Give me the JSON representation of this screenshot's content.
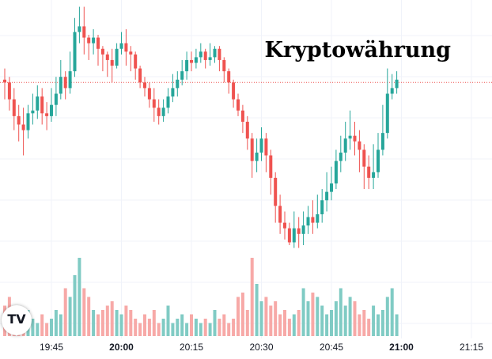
{
  "title": "Kryptowährung",
  "logo_text": "TV",
  "colors": {
    "up": "#26a69a",
    "down": "#ef5350",
    "vol_up": "#80cbc4",
    "vol_down": "#f7a9a7",
    "grid": "#f0f3fa",
    "price_line": "#ef5350"
  },
  "chart_data": {
    "type": "candlestick",
    "title": "Kryptowährung",
    "x_tick_labels": [
      {
        "label": "19:45",
        "bar": 10,
        "bold": false
      },
      {
        "label": "20:00",
        "bar": 25,
        "bold": true
      },
      {
        "label": "20:15",
        "bar": 40,
        "bold": false
      },
      {
        "label": "20:30",
        "bar": 55,
        "bold": false
      },
      {
        "label": "20:45",
        "bar": 70,
        "bold": false
      },
      {
        "label": "21:00",
        "bar": 85,
        "bold": true
      },
      {
        "label": "21:15",
        "bar": 100,
        "bold": false
      }
    ],
    "y_range": [
      -2.9,
      1.4
    ],
    "volume_range": [
      0,
      1
    ],
    "last_price": 0.0,
    "grid": true,
    "candles": [
      [
        0.05,
        0.0,
        0.25,
        -0.3
      ],
      [
        0.0,
        -0.3,
        0.1,
        -0.5
      ],
      [
        -0.3,
        -0.6,
        -0.1,
        -0.85
      ],
      [
        -0.6,
        -0.75,
        -0.4,
        -1.05
      ],
      [
        -0.75,
        -0.85,
        -0.45,
        -1.3
      ],
      [
        -0.85,
        -0.55,
        -0.4,
        -1.0
      ],
      [
        -0.55,
        -0.5,
        -0.2,
        -0.75
      ],
      [
        -0.5,
        -0.25,
        -0.05,
        -0.65
      ],
      [
        -0.25,
        -0.55,
        -0.1,
        -0.75
      ],
      [
        -0.55,
        -0.6,
        -0.35,
        -0.85
      ],
      [
        -0.6,
        -0.4,
        -0.1,
        -0.7
      ],
      [
        -0.4,
        -0.2,
        0.1,
        -0.6
      ],
      [
        -0.2,
        0.1,
        0.4,
        -0.3
      ],
      [
        0.1,
        -0.1,
        0.2,
        -0.3
      ],
      [
        -0.1,
        0.2,
        0.55,
        -0.2
      ],
      [
        0.2,
        0.9,
        1.15,
        0.1
      ],
      [
        0.9,
        1.0,
        1.35,
        0.7
      ],
      [
        1.0,
        0.8,
        1.35,
        0.5
      ],
      [
        0.8,
        0.7,
        0.85,
        0.4
      ],
      [
        0.7,
        0.8,
        0.95,
        0.5
      ],
      [
        0.8,
        0.6,
        0.85,
        0.3
      ],
      [
        0.6,
        0.5,
        0.65,
        0.2
      ],
      [
        0.5,
        0.4,
        0.55,
        0.1
      ],
      [
        0.4,
        0.3,
        0.6,
        0.0
      ],
      [
        0.3,
        0.6,
        0.7,
        0.25
      ],
      [
        0.6,
        0.7,
        0.9,
        0.5
      ],
      [
        0.7,
        0.55,
        0.95,
        0.3
      ],
      [
        0.55,
        0.5,
        0.65,
        0.2
      ],
      [
        0.5,
        0.25,
        0.55,
        0.05
      ],
      [
        0.25,
        0.0,
        0.3,
        -0.1
      ],
      [
        0.0,
        -0.1,
        0.1,
        -0.25
      ],
      [
        -0.1,
        -0.3,
        0.0,
        -0.45
      ],
      [
        -0.3,
        -0.45,
        -0.1,
        -0.7
      ],
      [
        -0.45,
        -0.6,
        -0.3,
        -0.75
      ],
      [
        -0.6,
        -0.45,
        -0.3,
        -0.7
      ],
      [
        -0.45,
        -0.25,
        -0.1,
        -0.55
      ],
      [
        -0.25,
        -0.1,
        0.15,
        -0.35
      ],
      [
        -0.1,
        0.05,
        0.2,
        -0.25
      ],
      [
        0.05,
        0.2,
        0.4,
        -0.05
      ],
      [
        0.2,
        0.4,
        0.55,
        0.05
      ],
      [
        0.4,
        0.35,
        0.55,
        0.2
      ],
      [
        0.35,
        0.45,
        0.6,
        0.25
      ],
      [
        0.45,
        0.55,
        0.7,
        0.35
      ],
      [
        0.55,
        0.4,
        0.6,
        0.25
      ],
      [
        0.4,
        0.45,
        0.7,
        0.3
      ],
      [
        0.45,
        0.6,
        0.65,
        0.35
      ],
      [
        0.6,
        0.4,
        0.65,
        0.2
      ],
      [
        0.4,
        0.2,
        0.45,
        0.0
      ],
      [
        0.2,
        0.0,
        0.25,
        -0.2
      ],
      [
        0.0,
        -0.3,
        0.05,
        -0.45
      ],
      [
        -0.3,
        -0.5,
        -0.2,
        -0.6
      ],
      [
        -0.5,
        -0.7,
        -0.4,
        -0.9
      ],
      [
        -0.7,
        -1.0,
        -0.6,
        -1.2
      ],
      [
        -1.0,
        -1.4,
        -0.9,
        -1.7
      ],
      [
        -1.4,
        -1.25,
        -1.0,
        -1.6
      ],
      [
        -1.25,
        -1.0,
        -0.8,
        -1.4
      ],
      [
        -1.0,
        -1.3,
        -0.9,
        -1.6
      ],
      [
        -1.3,
        -1.7,
        -1.2,
        -2.0
      ],
      [
        -1.7,
        -2.2,
        -1.6,
        -2.5
      ],
      [
        -2.2,
        -2.5,
        -2.0,
        -2.7
      ],
      [
        -2.5,
        -2.6,
        -2.3,
        -2.8
      ],
      [
        -2.6,
        -2.85,
        -2.5,
        -2.9
      ],
      [
        -2.85,
        -2.6,
        -2.3,
        -2.95
      ],
      [
        -2.6,
        -2.7,
        -2.4,
        -2.95
      ],
      [
        -2.7,
        -2.55,
        -2.3,
        -2.9
      ],
      [
        -2.55,
        -2.4,
        -2.2,
        -2.7
      ],
      [
        -2.4,
        -2.5,
        -2.1,
        -2.7
      ],
      [
        -2.5,
        -2.35,
        -2.0,
        -2.6
      ],
      [
        -2.35,
        -2.1,
        -1.9,
        -2.5
      ],
      [
        -2.1,
        -1.95,
        -1.6,
        -2.3
      ],
      [
        -1.95,
        -1.8,
        -1.5,
        -2.1
      ],
      [
        -1.8,
        -1.4,
        -1.2,
        -1.9
      ],
      [
        -1.4,
        -1.25,
        -0.95,
        -1.6
      ],
      [
        -1.25,
        -1.0,
        -0.7,
        -1.4
      ],
      [
        -1.0,
        -0.95,
        -0.5,
        -1.2
      ],
      [
        -0.95,
        -1.05,
        -0.7,
        -1.3
      ],
      [
        -1.05,
        -1.2,
        -0.85,
        -1.6
      ],
      [
        -1.2,
        -1.5,
        -1.1,
        -1.9
      ],
      [
        -1.5,
        -1.7,
        -1.3,
        -1.9
      ],
      [
        -1.7,
        -1.6,
        -1.1,
        -1.9
      ],
      [
        -1.6,
        -1.2,
        -0.9,
        -1.7
      ],
      [
        -1.2,
        -0.9,
        -0.4,
        -1.3
      ],
      [
        -0.9,
        -0.2,
        0.25,
        -1.0
      ],
      [
        -0.2,
        -0.1,
        0.15,
        -0.3
      ],
      [
        -0.1,
        0.05,
        0.2,
        -0.2
      ]
    ],
    "volumes": [
      0.35,
      0.45,
      0.2,
      0.15,
      0.25,
      0.3,
      0.2,
      0.15,
      0.25,
      0.15,
      0.2,
      0.3,
      0.25,
      0.55,
      0.45,
      0.7,
      0.9,
      0.55,
      0.45,
      0.3,
      0.25,
      0.3,
      0.35,
      0.4,
      0.3,
      0.25,
      0.35,
      0.3,
      0.2,
      0.15,
      0.25,
      0.2,
      0.3,
      0.15,
      0.2,
      0.35,
      0.15,
      0.2,
      0.25,
      0.15,
      0.25,
      0.2,
      0.15,
      0.2,
      0.15,
      0.3,
      0.2,
      0.25,
      0.15,
      0.2,
      0.45,
      0.5,
      0.3,
      0.9,
      0.6,
      0.4,
      0.45,
      0.35,
      0.4,
      0.25,
      0.3,
      0.2,
      0.25,
      0.3,
      0.55,
      0.4,
      0.5,
      0.45,
      0.35,
      0.25,
      0.3,
      0.4,
      0.55,
      0.35,
      0.45,
      0.4,
      0.25,
      0.3,
      0.2,
      0.35,
      0.25,
      0.3,
      0.45,
      0.55,
      0.25
    ]
  }
}
